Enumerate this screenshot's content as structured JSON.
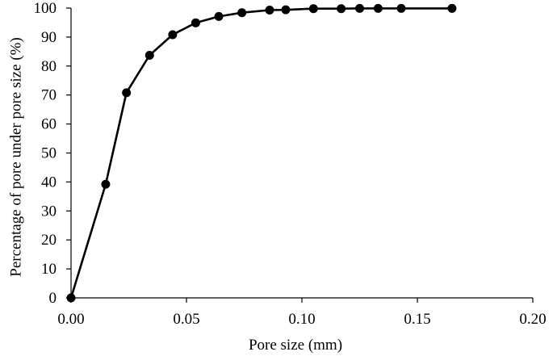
{
  "chart_data": {
    "type": "line",
    "title": "",
    "xlabel": "Pore size (mm)",
    "ylabel": "Percentage of pore under pore size (%)",
    "xlim": [
      0,
      0.2
    ],
    "ylim": [
      0,
      100
    ],
    "xticks": [
      "0.00",
      "0.05",
      "0.10",
      "0.15",
      "0.20"
    ],
    "yticks": [
      "0",
      "10",
      "20",
      "30",
      "40",
      "50",
      "60",
      "70",
      "80",
      "90",
      "100"
    ],
    "grid": false,
    "legend": "none",
    "series": [
      {
        "color": "#000000",
        "marker": "circle",
        "points": [
          {
            "x": 0.0,
            "y": 0
          },
          {
            "x": 0.015,
            "y": 39.2
          },
          {
            "x": 0.024,
            "y": 70.8
          },
          {
            "x": 0.034,
            "y": 83.7
          },
          {
            "x": 0.044,
            "y": 90.8
          },
          {
            "x": 0.054,
            "y": 94.9
          },
          {
            "x": 0.064,
            "y": 97.1
          },
          {
            "x": 0.074,
            "y": 98.4
          },
          {
            "x": 0.086,
            "y": 99.3
          },
          {
            "x": 0.093,
            "y": 99.4
          },
          {
            "x": 0.105,
            "y": 99.8
          },
          {
            "x": 0.117,
            "y": 99.8
          },
          {
            "x": 0.125,
            "y": 99.9
          },
          {
            "x": 0.133,
            "y": 99.9
          },
          {
            "x": 0.143,
            "y": 99.9
          },
          {
            "x": 0.165,
            "y": 99.9
          }
        ]
      }
    ]
  }
}
